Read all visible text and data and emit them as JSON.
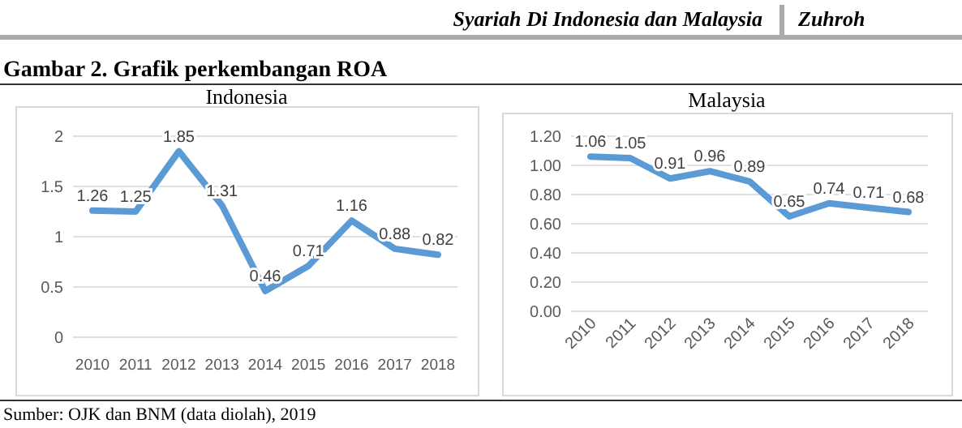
{
  "chart_data": [
    {
      "type": "line",
      "title": "Indonesia",
      "categories": [
        "2010",
        "2011",
        "2012",
        "2013",
        "2014",
        "2015",
        "2016",
        "2017",
        "2018"
      ],
      "series": [
        {
          "color": "#5b9bd5",
          "values": [
            1.26,
            1.25,
            1.85,
            1.31,
            0.46,
            0.71,
            1.16,
            0.88,
            0.82
          ]
        }
      ],
      "ylim": [
        0,
        2
      ],
      "yticks": [
        0,
        0.5,
        1,
        1.5,
        2
      ],
      "grid": "y",
      "data_labels": true,
      "marker": "none",
      "annotations": [
        "Syariah Di Indonesia dan Malaysia",
        "Zuhroh",
        "Gambar 2. Grafik perkembangan ROA",
        "Sumber: OJK dan BNM (data diolah), 2019"
      ]
    },
    {
      "type": "line",
      "title": "Malaysia",
      "categories": [
        "2010",
        "2011",
        "2012",
        "2013",
        "2014",
        "2015",
        "2016",
        "2017",
        "2018"
      ],
      "series": [
        {
          "color": "#5b9bd5",
          "values": [
            1.06,
            1.05,
            0.91,
            0.96,
            0.89,
            0.65,
            0.74,
            0.71,
            0.68
          ]
        }
      ],
      "ylim": [
        0,
        1.2
      ],
      "yticks": [
        {
          "value": 0,
          "label": "0.00"
        },
        {
          "value": 0.2,
          "label": "0.20"
        },
        {
          "value": 0.4,
          "label": "0.40"
        },
        {
          "value": 0.6,
          "label": "0.60"
        },
        {
          "value": 0.8,
          "label": "0.80"
        },
        {
          "value": 1,
          "label": "1.00"
        },
        {
          "value": 1.2,
          "label": "1.20"
        }
      ],
      "grid": "y",
      "data_labels": true,
      "marker": "none"
    }
  ]
}
